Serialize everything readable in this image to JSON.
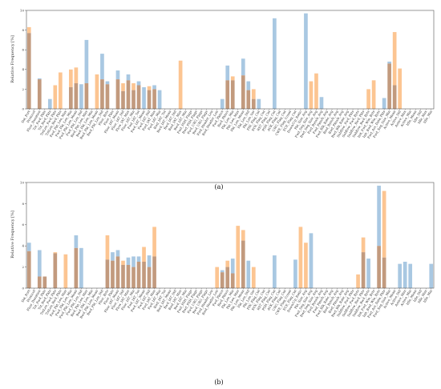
{
  "colors": {
    "blue": "#a9c8e2",
    "orange": "#fcc592",
    "overlap": "#c29a7e",
    "axis": "#555555"
  },
  "features": [
    "Dst_Port",
    "Protocol",
    "Flow_Duration",
    "Tot_Fwd_Pkts",
    "Tot_Bwd_Pkts",
    "TotLen_Fwd_Pkts",
    "TotLen_Bwd_Pkts",
    "Fwd_Pkt_Len_Max",
    "Fwd_Pkt_Len_Min",
    "Fwd_Pkt_Len_Mean",
    "Fwd_Pkt_Len_Std",
    "Bwd_Pkt_Len_Max",
    "Bwd_Pkt_Len_Min",
    "Bwd_Pkt_Len_Mean",
    "Bwd_Pkt_Len_Std",
    "Flow_Byts",
    "Flow_Pkts",
    "Flow_IAT_Mean",
    "Flow_IAT_Std",
    "Flow_IAT_Max",
    "Flow_IAT_Min",
    "Fwd_IAT_Tot",
    "Fwd_IAT_Mean",
    "Fwd_IAT_Std",
    "Fwd_IAT_Max",
    "Fwd_IAT_Min",
    "Bwd_IAT_Tot",
    "Bwd_IAT_Mean",
    "Bwd_IAT_Std",
    "Bwd_IAT_Max",
    "Bwd_IAT_Min",
    "Fwd_PSH_Flags",
    "Bwd_PSH_Flags",
    "Fwd_URG_Flags",
    "Bwd_URG_Flags",
    "Fwd_Header_Len",
    "Bwd_Header_Len",
    "Fwd_Pkts/s",
    "Bwd_Pkts/s",
    "Pkt_Len_Min",
    "Pkt_Len_Max",
    "Pkt_Len_Mean",
    "Pkt_Len_Std",
    "Pkt_Len_Var",
    "FIN_Flag_Cnt",
    "SYN_Flag_Cnt",
    "RST_Flag_Cnt",
    "PSH_Flag_Cnt",
    "ACK_Flag_Cnt",
    "URG_Flag_Cnt",
    "CWE_Flag_Count",
    "ECE_Flag_Cnt",
    "Down/Up_Ratio",
    "Pkt_Size_Avg",
    "Fwd_Seg_Size_Avg",
    "Bwd_Seg_Size_Avg",
    "Fwd_Byts/b_Avg",
    "Fwd_Pkts/b_Avg",
    "Fwd_Blk_Rate_Avg",
    "Bwd_Byts/b_Avg",
    "Bwd_Pkts/b_Avg",
    "Bwd_Blk_Rate_Avg",
    "Subflow_Fwd_Pkts",
    "Subflow_Fwd_Byts",
    "Subflow_Bwd_Pkts",
    "Subflow_Bwd_Byts",
    "Init_Fwd_Win_Byts",
    "Init_Bwd_Win_Byts",
    "Fwd_Act_Data_Pkts",
    "Fwd_Seg_Size_Min",
    "Active_Mean",
    "Active_Std",
    "Active_Max",
    "Active_Min",
    "Idle_Mean",
    "Idle_Std",
    "Idle_Max",
    "Idle_Min"
  ],
  "chart_data": [
    {
      "type": "bar",
      "panel": "(a)",
      "ylabel": "Relative Frequency [%]",
      "ylim": [
        0,
        10
      ],
      "yticks": [
        0,
        2,
        4,
        6,
        8,
        10
      ],
      "caption": "(a)",
      "series": [
        {
          "name": "",
          "color": "blue",
          "values": [
            7.7,
            0,
            3.1,
            0,
            1.0,
            0,
            0,
            0,
            2.2,
            2.6,
            2.5,
            7.0,
            0,
            0,
            5.6,
            2.8,
            0,
            3.9,
            1.8,
            3.5,
            1.9,
            2.8,
            2.2,
            1.9,
            2.4,
            1.9,
            0,
            0,
            0,
            0,
            0,
            0,
            0,
            0,
            0,
            0,
            0,
            1.0,
            4.4,
            2.9,
            0,
            5.1,
            2.8,
            1.0,
            1.0,
            0,
            0,
            9.2,
            0,
            0,
            0,
            0,
            0,
            9.7,
            0,
            0,
            1.2,
            0,
            0,
            0,
            0,
            0,
            0,
            0,
            0,
            0,
            0,
            0,
            1.1,
            4.8,
            2.4,
            0,
            0,
            0,
            0,
            0,
            0,
            0
          ]
        },
        {
          "name": "",
          "color": "orange",
          "values": [
            8.3,
            0,
            3.0,
            0,
            0,
            2.4,
            3.7,
            0,
            4.0,
            4.2,
            0,
            2.6,
            0,
            3.5,
            3.0,
            2.5,
            0,
            3.0,
            2.6,
            2.9,
            2.6,
            2.4,
            0,
            2.3,
            2.0,
            0,
            0,
            0,
            0,
            4.9,
            0,
            0,
            0,
            0,
            0,
            0,
            0,
            0,
            2.9,
            3.3,
            0,
            3.4,
            1.9,
            2.0,
            0,
            0,
            0,
            0,
            0,
            0,
            0,
            0,
            0,
            0,
            2.8,
            3.6,
            0,
            0,
            0,
            0,
            0,
            0,
            0,
            0,
            0,
            2.0,
            2.9,
            0,
            0,
            4.6,
            7.8,
            4.1,
            0,
            0,
            0,
            0,
            0,
            0
          ]
        }
      ]
    },
    {
      "type": "bar",
      "panel": "(b)",
      "ylabel": "Relative Frequency [%]",
      "ylim": [
        0,
        10
      ],
      "yticks": [
        0,
        2,
        4,
        6,
        8,
        10
      ],
      "caption": "(b)",
      "series": [
        {
          "name": "",
          "color": "blue",
          "values": [
            4.3,
            0,
            3.6,
            1.1,
            0,
            3.3,
            0,
            0,
            0,
            5.0,
            3.8,
            0,
            0,
            0,
            0,
            2.7,
            3.4,
            3.6,
            2.2,
            2.9,
            3.0,
            3.0,
            2.5,
            3.1,
            3.0,
            0,
            0,
            0,
            0,
            0,
            0,
            0,
            0,
            0,
            0,
            0,
            0,
            1.7,
            2.0,
            2.8,
            0,
            4.5,
            2.6,
            0,
            0,
            0,
            0,
            3.1,
            0,
            0,
            0,
            2.7,
            0,
            0,
            5.2,
            0,
            0,
            0,
            0,
            0,
            0,
            0,
            0,
            0,
            3.4,
            2.8,
            0,
            9.7,
            2.9,
            0,
            0,
            2.3,
            2.5,
            2.3,
            0,
            0,
            0,
            2.3
          ]
        },
        {
          "name": "",
          "color": "orange",
          "values": [
            3.5,
            0,
            1.1,
            1.1,
            0,
            3.4,
            0,
            3.2,
            0,
            3.8,
            0,
            0,
            0,
            0,
            0,
            5.0,
            2.6,
            3.0,
            2.6,
            2.2,
            2.0,
            2.5,
            3.9,
            2.0,
            5.8,
            0,
            0,
            0,
            0,
            0,
            0,
            0,
            0,
            0,
            0,
            0,
            2.0,
            1.5,
            2.6,
            1.4,
            5.9,
            5.5,
            0,
            2.0,
            0,
            0,
            0,
            0,
            0,
            0,
            0,
            0,
            5.8,
            4.3,
            0,
            0,
            0,
            0,
            0,
            0,
            0,
            0,
            0,
            1.3,
            4.8,
            0,
            0,
            4.0,
            9.2,
            0,
            0,
            0,
            0,
            0,
            0,
            0,
            0,
            0
          ]
        }
      ]
    }
  ]
}
